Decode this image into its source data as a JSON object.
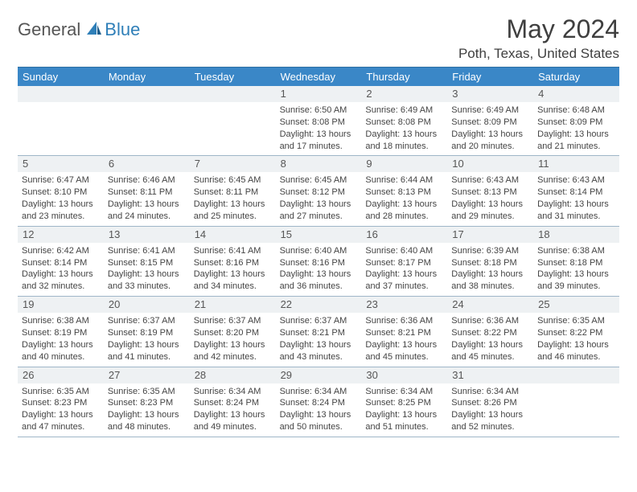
{
  "logo": {
    "general": "General",
    "blue": "Blue"
  },
  "title": "May 2024",
  "location": "Poth, Texas, United States",
  "colors": {
    "header_bg": "#3a87c7",
    "header_text": "#ffffff",
    "daynum_bg": "#eef1f3",
    "border": "#9fb6c8",
    "brand_blue": "#2f7fb8",
    "text": "#333333"
  },
  "days_of_week": [
    "Sunday",
    "Monday",
    "Tuesday",
    "Wednesday",
    "Thursday",
    "Friday",
    "Saturday"
  ],
  "weeks": [
    [
      null,
      null,
      null,
      {
        "n": "1",
        "sr": "6:50 AM",
        "ss": "8:08 PM",
        "dl": "13 hours and 17 minutes."
      },
      {
        "n": "2",
        "sr": "6:49 AM",
        "ss": "8:08 PM",
        "dl": "13 hours and 18 minutes."
      },
      {
        "n": "3",
        "sr": "6:49 AM",
        "ss": "8:09 PM",
        "dl": "13 hours and 20 minutes."
      },
      {
        "n": "4",
        "sr": "6:48 AM",
        "ss": "8:09 PM",
        "dl": "13 hours and 21 minutes."
      }
    ],
    [
      {
        "n": "5",
        "sr": "6:47 AM",
        "ss": "8:10 PM",
        "dl": "13 hours and 23 minutes."
      },
      {
        "n": "6",
        "sr": "6:46 AM",
        "ss": "8:11 PM",
        "dl": "13 hours and 24 minutes."
      },
      {
        "n": "7",
        "sr": "6:45 AM",
        "ss": "8:11 PM",
        "dl": "13 hours and 25 minutes."
      },
      {
        "n": "8",
        "sr": "6:45 AM",
        "ss": "8:12 PM",
        "dl": "13 hours and 27 minutes."
      },
      {
        "n": "9",
        "sr": "6:44 AM",
        "ss": "8:13 PM",
        "dl": "13 hours and 28 minutes."
      },
      {
        "n": "10",
        "sr": "6:43 AM",
        "ss": "8:13 PM",
        "dl": "13 hours and 29 minutes."
      },
      {
        "n": "11",
        "sr": "6:43 AM",
        "ss": "8:14 PM",
        "dl": "13 hours and 31 minutes."
      }
    ],
    [
      {
        "n": "12",
        "sr": "6:42 AM",
        "ss": "8:14 PM",
        "dl": "13 hours and 32 minutes."
      },
      {
        "n": "13",
        "sr": "6:41 AM",
        "ss": "8:15 PM",
        "dl": "13 hours and 33 minutes."
      },
      {
        "n": "14",
        "sr": "6:41 AM",
        "ss": "8:16 PM",
        "dl": "13 hours and 34 minutes."
      },
      {
        "n": "15",
        "sr": "6:40 AM",
        "ss": "8:16 PM",
        "dl": "13 hours and 36 minutes."
      },
      {
        "n": "16",
        "sr": "6:40 AM",
        "ss": "8:17 PM",
        "dl": "13 hours and 37 minutes."
      },
      {
        "n": "17",
        "sr": "6:39 AM",
        "ss": "8:18 PM",
        "dl": "13 hours and 38 minutes."
      },
      {
        "n": "18",
        "sr": "6:38 AM",
        "ss": "8:18 PM",
        "dl": "13 hours and 39 minutes."
      }
    ],
    [
      {
        "n": "19",
        "sr": "6:38 AM",
        "ss": "8:19 PM",
        "dl": "13 hours and 40 minutes."
      },
      {
        "n": "20",
        "sr": "6:37 AM",
        "ss": "8:19 PM",
        "dl": "13 hours and 41 minutes."
      },
      {
        "n": "21",
        "sr": "6:37 AM",
        "ss": "8:20 PM",
        "dl": "13 hours and 42 minutes."
      },
      {
        "n": "22",
        "sr": "6:37 AM",
        "ss": "8:21 PM",
        "dl": "13 hours and 43 minutes."
      },
      {
        "n": "23",
        "sr": "6:36 AM",
        "ss": "8:21 PM",
        "dl": "13 hours and 45 minutes."
      },
      {
        "n": "24",
        "sr": "6:36 AM",
        "ss": "8:22 PM",
        "dl": "13 hours and 45 minutes."
      },
      {
        "n": "25",
        "sr": "6:35 AM",
        "ss": "8:22 PM",
        "dl": "13 hours and 46 minutes."
      }
    ],
    [
      {
        "n": "26",
        "sr": "6:35 AM",
        "ss": "8:23 PM",
        "dl": "13 hours and 47 minutes."
      },
      {
        "n": "27",
        "sr": "6:35 AM",
        "ss": "8:23 PM",
        "dl": "13 hours and 48 minutes."
      },
      {
        "n": "28",
        "sr": "6:34 AM",
        "ss": "8:24 PM",
        "dl": "13 hours and 49 minutes."
      },
      {
        "n": "29",
        "sr": "6:34 AM",
        "ss": "8:24 PM",
        "dl": "13 hours and 50 minutes."
      },
      {
        "n": "30",
        "sr": "6:34 AM",
        "ss": "8:25 PM",
        "dl": "13 hours and 51 minutes."
      },
      {
        "n": "31",
        "sr": "6:34 AM",
        "ss": "8:26 PM",
        "dl": "13 hours and 52 minutes."
      },
      null
    ]
  ]
}
